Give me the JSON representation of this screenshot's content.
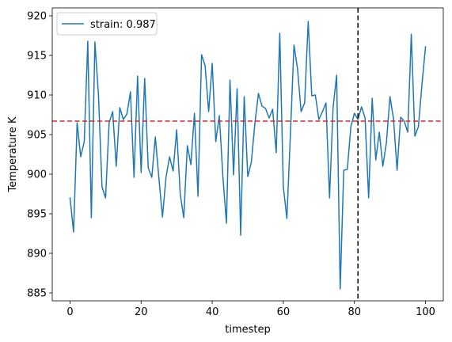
{
  "chart_data": {
    "type": "line",
    "xlabel": "timestep",
    "ylabel": "Temperature K",
    "xlim": [
      -5,
      105
    ],
    "ylim": [
      884,
      921
    ],
    "xticks": [
      0,
      20,
      40,
      60,
      80,
      100
    ],
    "yticks": [
      885,
      890,
      895,
      900,
      905,
      910,
      915,
      920
    ],
    "grid": false,
    "legend_position": "upper-left",
    "series": [
      {
        "name": "strain: 0.987",
        "color": "#1f77b4",
        "x": [
          0,
          1,
          2,
          3,
          4,
          5,
          6,
          7,
          8,
          9,
          10,
          11,
          12,
          13,
          14,
          15,
          16,
          17,
          18,
          19,
          20,
          21,
          22,
          23,
          24,
          25,
          26,
          27,
          28,
          29,
          30,
          31,
          32,
          33,
          34,
          35,
          36,
          37,
          38,
          39,
          40,
          41,
          42,
          43,
          44,
          45,
          46,
          47,
          48,
          49,
          50,
          51,
          52,
          53,
          54,
          55,
          56,
          57,
          58,
          59,
          60,
          61,
          62,
          63,
          64,
          65,
          66,
          67,
          68,
          69,
          70,
          71,
          72,
          73,
          74,
          75,
          76,
          77,
          78,
          79,
          80,
          81,
          82,
          83,
          84,
          85,
          86,
          87,
          88,
          89,
          90,
          91,
          92,
          93,
          94,
          95,
          96,
          97,
          98,
          99,
          100
        ],
        "y": [
          897.0,
          892.7,
          906.5,
          902.2,
          904.1,
          916.8,
          894.5,
          916.7,
          910.0,
          898.4,
          897.0,
          906.5,
          907.9,
          901.0,
          908.4,
          906.9,
          907.6,
          910.4,
          899.6,
          912.4,
          900.2,
          912.1,
          900.8,
          899.6,
          904.7,
          899.5,
          894.6,
          899.6,
          902.2,
          900.4,
          905.6,
          897.5,
          894.5,
          903.6,
          901.2,
          907.7,
          897.2,
          915.1,
          913.7,
          907.9,
          914.0,
          904.1,
          907.4,
          899.7,
          893.8,
          911.9,
          899.9,
          910.8,
          892.3,
          909.8,
          899.7,
          901.5,
          906.4,
          910.2,
          908.6,
          908.3,
          907.1,
          908.2,
          902.7,
          917.8,
          898.4,
          894.4,
          905.1,
          916.3,
          913.3,
          907.9,
          909.0,
          919.3,
          909.9,
          910.0,
          906.9,
          907.9,
          909.0,
          897.0,
          908.4,
          912.5,
          885.5,
          900.5,
          900.6,
          906.0,
          907.7,
          906.9,
          908.5,
          907.1,
          897.0,
          909.6,
          901.8,
          905.3,
          901.0,
          904.0,
          909.8,
          907.0,
          900.5,
          907.2,
          906.7,
          905.3,
          917.7,
          904.8,
          906.0,
          911.3,
          916.1
        ]
      }
    ],
    "reference_lines": [
      {
        "orientation": "horizontal",
        "value": 906.7,
        "color": "#d62728",
        "style": "dashed"
      },
      {
        "orientation": "vertical",
        "value": 81,
        "color": "#000000",
        "style": "dashed"
      }
    ]
  }
}
